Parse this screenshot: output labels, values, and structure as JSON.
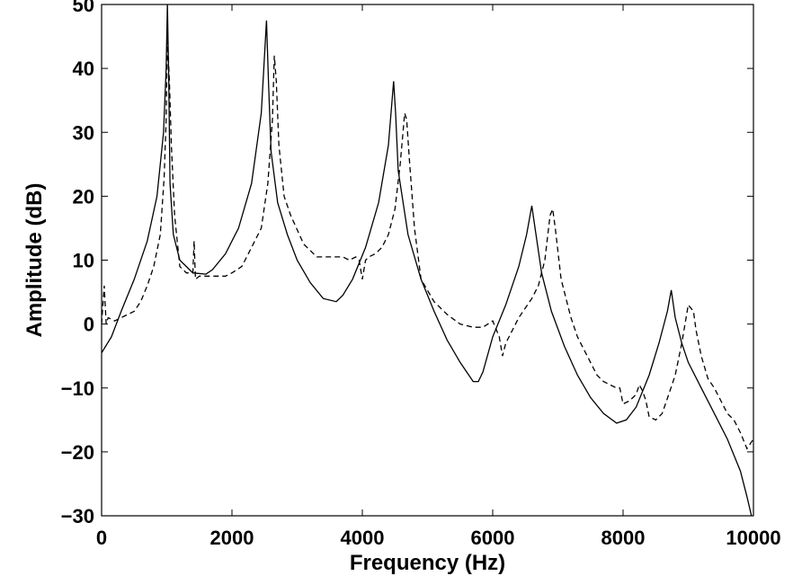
{
  "chart_data": {
    "type": "line",
    "title": "",
    "xlabel": "Frequency (Hz)",
    "ylabel": "Amplitude (dB)",
    "xlim": [
      0,
      10000
    ],
    "ylim": [
      -30,
      50
    ],
    "xticks": [
      0,
      2000,
      4000,
      6000,
      8000,
      10000
    ],
    "xtick_labels": [
      "0",
      "2000",
      "4000",
      "6000",
      "8000",
      "10000"
    ],
    "yticks": [
      -30,
      -20,
      -10,
      0,
      10,
      20,
      30,
      40,
      50
    ],
    "ytick_labels": [
      "−30",
      "−20",
      "−10",
      "0",
      "10",
      "20",
      "30",
      "40",
      "50"
    ],
    "grid": false,
    "legend": "none",
    "series": [
      {
        "style": "solid",
        "color": "#000000",
        "x": [
          0,
          150,
          300,
          500,
          700,
          850,
          950,
          990,
          1010,
          1030,
          1050,
          1100,
          1200,
          1400,
          1600,
          1700,
          1900,
          2100,
          2300,
          2450,
          2530,
          2560,
          2600,
          2700,
          2850,
          3000,
          3200,
          3400,
          3600,
          3700,
          3850,
          4050,
          4250,
          4400,
          4480,
          4510,
          4550,
          4700,
          4900,
          5100,
          5300,
          5500,
          5700,
          5780,
          5850,
          6000,
          6200,
          6400,
          6520,
          6600,
          6650,
          6750,
          6900,
          7100,
          7300,
          7500,
          7700,
          7900,
          8050,
          8200,
          8400,
          8550,
          8680,
          8740,
          8800,
          8900,
          9000,
          9200,
          9400,
          9600,
          9800,
          9900,
          9970
        ],
        "y": [
          -4.5,
          -2,
          2,
          7,
          13,
          20,
          30,
          40,
          50,
          38,
          22,
          14,
          10,
          8,
          7.8,
          8.5,
          11,
          15,
          22,
          33,
          47.5,
          38,
          27,
          19,
          14,
          10,
          6.5,
          4,
          3.5,
          4.5,
          7,
          12,
          19,
          28,
          38,
          33,
          24,
          14,
          7,
          2,
          -2.5,
          -6,
          -9,
          -9,
          -7.5,
          -2,
          3,
          9,
          14,
          18.5,
          15,
          8,
          2,
          -3.5,
          -8,
          -11.5,
          -14,
          -15.5,
          -15,
          -13,
          -8,
          -3,
          2,
          5.3,
          1,
          -3,
          -6,
          -10,
          -14,
          -18,
          -23,
          -27,
          -30
        ]
      },
      {
        "style": "dashed",
        "color": "#000000",
        "x": [
          0,
          40,
          70,
          100,
          200,
          300,
          400,
          500,
          600,
          700,
          800,
          900,
          960,
          990,
          1010,
          1040,
          1070,
          1120,
          1200,
          1300,
          1400,
          1420,
          1440,
          1500,
          1600,
          1700,
          1800,
          1900,
          2000,
          2150,
          2300,
          2450,
          2550,
          2620,
          2650,
          2680,
          2720,
          2800,
          2900,
          3100,
          3300,
          3500,
          3700,
          3800,
          3900,
          3950,
          4000,
          4050,
          4100,
          4200,
          4300,
          4400,
          4500,
          4580,
          4650,
          4680,
          4720,
          4800,
          4900,
          5100,
          5300,
          5500,
          5700,
          5850,
          6000,
          6100,
          6150,
          6200,
          6300,
          6400,
          6500,
          6600,
          6700,
          6800,
          6880,
          6920,
          6960,
          7050,
          7200,
          7300,
          7400,
          7500,
          7600,
          7700,
          7800,
          7900,
          7950,
          8000,
          8100,
          8200,
          8250,
          8300,
          8350,
          8400,
          8500,
          8600,
          8700,
          8800,
          8900,
          9000,
          9080,
          9120,
          9200,
          9300,
          9400,
          9500,
          9600,
          9700,
          9800,
          9900,
          10000
        ],
        "y": [
          0,
          6,
          0,
          1,
          0.5,
          1,
          1.5,
          2,
          3.5,
          6,
          9,
          14,
          23,
          32,
          45,
          38,
          28,
          17,
          9,
          8,
          8,
          13,
          7,
          7.5,
          7.5,
          7.5,
          7.5,
          7.5,
          8,
          9,
          12,
          15,
          22,
          32,
          42,
          38,
          28,
          20,
          17,
          12.5,
          10.5,
          10.5,
          10.5,
          10,
          10.5,
          10,
          7,
          10,
          10.5,
          11,
          12,
          14,
          18,
          25,
          33,
          32,
          26,
          15,
          7,
          3.5,
          1.5,
          0,
          -0.5,
          -0.5,
          0.5,
          -2,
          -5,
          -3,
          -1,
          1,
          2.5,
          4,
          6,
          10,
          17,
          18,
          15,
          7,
          1,
          -2,
          -4,
          -6,
          -8,
          -9,
          -9.5,
          -10,
          -10,
          -12.5,
          -12,
          -11,
          -9.5,
          -10.5,
          -12,
          -14.5,
          -15,
          -14,
          -11,
          -8,
          -3,
          3,
          2,
          -1,
          -5,
          -8.5,
          -10,
          -12,
          -14,
          -15,
          -17,
          -19.5,
          -18
        ]
      }
    ]
  }
}
